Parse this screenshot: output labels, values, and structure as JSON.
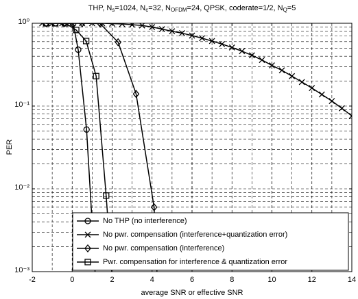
{
  "chart_data": {
    "type": "line",
    "title": [
      "THP, N",
      "s",
      "=1024, N",
      "c",
      "=32, N",
      "OFDM",
      "=24, QPSK, coderate=1/2, N",
      "Q",
      "=5"
    ],
    "x_label": "average SNR or effective SNR",
    "y_label": "PER",
    "xlim": [
      -2,
      14
    ],
    "xticks": [
      -2,
      0,
      2,
      4,
      6,
      8,
      10,
      12,
      14
    ],
    "ylim": [
      0.001,
      1
    ],
    "yscale": "log",
    "yticks": [
      {
        "value": 0.001,
        "label": "10⁻³"
      },
      {
        "value": 0.01,
        "label": "10⁻²"
      },
      {
        "value": 0.1,
        "label": "10⁻¹"
      },
      {
        "value": 1,
        "label": "10⁰"
      }
    ],
    "grid": true,
    "legend": "lower right",
    "series": [
      {
        "name": "No THP (no interference)",
        "color": "#000000",
        "marker": "circle",
        "x": [
          -1.3,
          -0.85,
          -0.4,
          0.05,
          0.3,
          0.72,
          1.2
        ],
        "values": [
          1,
          1,
          1,
          0.99,
          0.48,
          0.052,
          0.0006
        ]
      },
      {
        "name": "No pwr. compensation (interference+quantization error)",
        "color": "#000000",
        "marker": "x",
        "x": [
          -1.5,
          -1,
          -0.5,
          0,
          0.5,
          1,
          1.5,
          2,
          2.5,
          3,
          3.5,
          4,
          4.5,
          5,
          5.5,
          6,
          6.5,
          7,
          7.5,
          8,
          8.5,
          9,
          9.5,
          10,
          10.5,
          11,
          11.5,
          12,
          12.5,
          13,
          13.5,
          14
        ],
        "values": [
          1,
          1,
          1,
          1,
          1,
          1,
          1,
          0.99,
          0.98,
          0.96,
          0.94,
          0.9,
          0.85,
          0.8,
          0.76,
          0.71,
          0.66,
          0.61,
          0.56,
          0.51,
          0.46,
          0.41,
          0.36,
          0.31,
          0.27,
          0.23,
          0.195,
          0.165,
          0.138,
          0.115,
          0.094,
          0.076
        ]
      },
      {
        "name": "No pwr. compensation (interference)",
        "color": "#000000",
        "marker": "diamond",
        "x": [
          -1.3,
          -0.4,
          0.5,
          1.4,
          2.3,
          3.2,
          4.1,
          4.3
        ],
        "values": [
          1,
          1,
          1,
          0.99,
          0.59,
          0.14,
          0.006,
          0.0005
        ]
      },
      {
        "name": "Pwr. compensation for interference & quantization error",
        "color": "#000000",
        "marker": "square",
        "x": [
          -1.3,
          -0.85,
          -0.35,
          0.2,
          0.7,
          1.2,
          1.7,
          2.1
        ],
        "values": [
          1,
          1,
          1,
          0.83,
          0.61,
          0.23,
          0.0083,
          0.0004
        ]
      }
    ]
  }
}
